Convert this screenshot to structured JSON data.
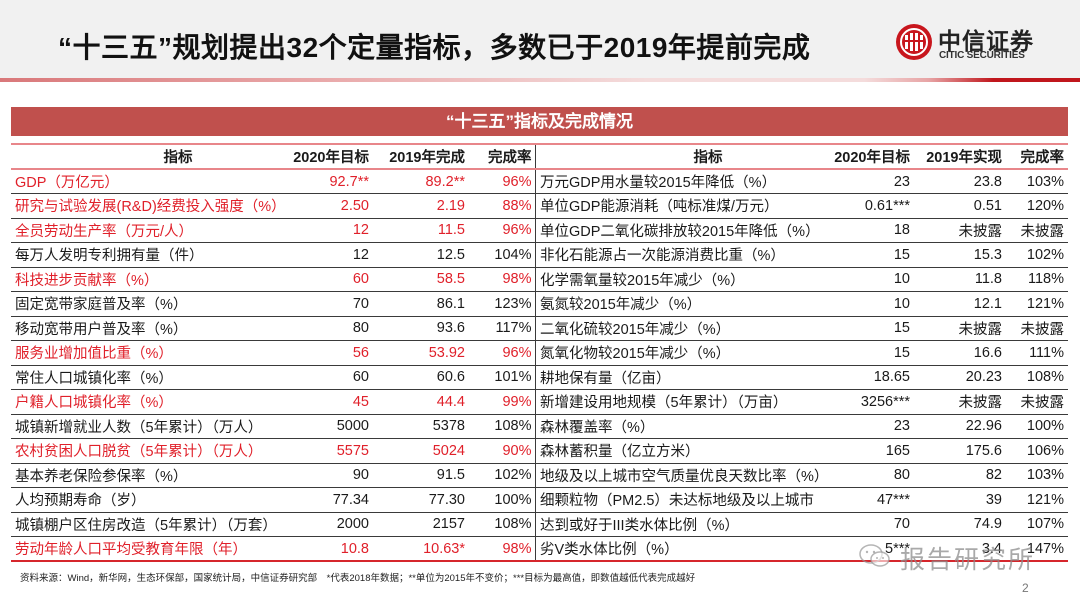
{
  "header": {
    "title": "“十三五”规划提出32个定量指标，多数已于2019年提前完成",
    "logo": {
      "cn": "中信证券",
      "en": "CITIC SECURITIES",
      "icon": "citic-logo-icon",
      "brand_color": "#c8161d"
    }
  },
  "banner": {
    "title": "“十三五”指标及完成情况",
    "color": "#c0504d"
  },
  "left_table": {
    "columns": [
      "指标",
      "2020年目标",
      "2019年完成",
      "完成率"
    ],
    "rows": [
      {
        "name": "GDP（万亿元）",
        "target": "92.7**",
        "actual": "89.2**",
        "rate": "96%",
        "highlight": true
      },
      {
        "name": "研究与试验发展(R&D)经费投入强度（%）",
        "target": "2.50",
        "actual": "2.19",
        "rate": "88%",
        "highlight": true
      },
      {
        "name": "全员劳动生产率（万元/人）",
        "target": "12",
        "actual": "11.5",
        "rate": "96%",
        "highlight": true
      },
      {
        "name": "每万人发明专利拥有量（件）",
        "target": "12",
        "actual": "12.5",
        "rate": "104%",
        "highlight": false
      },
      {
        "name": "科技进步贡献率（%）",
        "target": "60",
        "actual": "58.5",
        "rate": "98%",
        "highlight": true
      },
      {
        "name": "固定宽带家庭普及率（%）",
        "target": "70",
        "actual": "86.1",
        "rate": "123%",
        "highlight": false
      },
      {
        "name": "移动宽带用户普及率（%）",
        "target": "80",
        "actual": "93.6",
        "rate": "117%",
        "highlight": false
      },
      {
        "name": "服务业增加值比重（%）",
        "target": "56",
        "actual": "53.92",
        "rate": "96%",
        "highlight": true
      },
      {
        "name": "常住人口城镇化率（%）",
        "target": "60",
        "actual": "60.6",
        "rate": "101%",
        "highlight": false
      },
      {
        "name": "户籍人口城镇化率（%）",
        "target": "45",
        "actual": "44.4",
        "rate": "99%",
        "highlight": true
      },
      {
        "name": "城镇新增就业人数（5年累计）（万人）",
        "target": "5000",
        "actual": "5378",
        "rate": "108%",
        "highlight": false
      },
      {
        "name": "农村贫困人口脱贫（5年累计）（万人）",
        "target": "5575",
        "actual": "5024",
        "rate": "90%",
        "highlight": true
      },
      {
        "name": "基本养老保险参保率（%）",
        "target": "90",
        "actual": "91.5",
        "rate": "102%",
        "highlight": false
      },
      {
        "name": "人均预期寿命（岁）",
        "target": "77.34",
        "actual": "77.30",
        "rate": "100%",
        "highlight": false
      },
      {
        "name": "城镇棚户区住房改造（5年累计）（万套）",
        "target": "2000",
        "actual": "2157",
        "rate": "108%",
        "highlight": false
      },
      {
        "name": "劳动年龄人口平均受教育年限（年）",
        "target": "10.8",
        "actual": "10.63*",
        "rate": "98%",
        "highlight": true
      }
    ]
  },
  "right_table": {
    "columns": [
      "指标",
      "2020年目标",
      "2019年实现",
      "完成率"
    ],
    "rows": [
      {
        "name": "万元GDP用水量较2015年降低（%）",
        "target": "23",
        "actual": "23.8",
        "rate": "103%"
      },
      {
        "name": "单位GDP能源消耗（吨标准煤/万元）",
        "target": "0.61***",
        "actual": "0.51",
        "rate": "120%"
      },
      {
        "name": "单位GDP二氧化碳排放较2015年降低（%）",
        "target": "18",
        "actual": "未披露",
        "rate": "未披露"
      },
      {
        "name": "非化石能源占一次能源消费比重（%）",
        "target": "15",
        "actual": "15.3",
        "rate": "102%"
      },
      {
        "name": "化学需氧量较2015年减少（%）",
        "target": "10",
        "actual": "11.8",
        "rate": "118%"
      },
      {
        "name": "氨氮较2015年减少（%）",
        "target": "10",
        "actual": "12.1",
        "rate": "121%"
      },
      {
        "name": "二氧化硫较2015年减少（%）",
        "target": "15",
        "actual": "未披露",
        "rate": "未披露"
      },
      {
        "name": "氮氧化物较2015年减少（%）",
        "target": "15",
        "actual": "16.6",
        "rate": "111%"
      },
      {
        "name": "耕地保有量（亿亩）",
        "target": "18.65",
        "actual": "20.23",
        "rate": "108%"
      },
      {
        "name": "新增建设用地规模（5年累计）（万亩）",
        "target": "3256***",
        "actual": "未披露",
        "rate": "未披露"
      },
      {
        "name": "森林覆盖率（%）",
        "target": "23",
        "actual": "22.96",
        "rate": "100%"
      },
      {
        "name": "森林蓄积量（亿立方米）",
        "target": "165",
        "actual": "175.6",
        "rate": "106%"
      },
      {
        "name": "地级及以上城市空气质量优良天数比率（%）",
        "target": "80",
        "actual": "82",
        "rate": "103%"
      },
      {
        "name": "细颗粒物（PM2.5）未达标地级及以上城市",
        "target": "47***",
        "actual": "39",
        "rate": "121%"
      },
      {
        "name": "达到或好于III类水体比例（%）",
        "target": "70",
        "actual": "74.9",
        "rate": "107%"
      },
      {
        "name": "劣V类水体比例（%）",
        "target": "5***",
        "actual": "3.4",
        "rate": "147%"
      }
    ]
  },
  "footer": {
    "note": "资料来源：Wind，新华网，生态环保部，国家统计局，中信证券研究部　*代表2018年数据；**单位为2015年不变价；***目标为最高值，即数值越低代表完成越好",
    "page_number": "2"
  },
  "watermark": {
    "text": "报告研究所",
    "icon": "wechat-icon"
  },
  "colors": {
    "highlight_text": "#e0202a",
    "banner": "#c0504d",
    "header_bg": "#f1f1f1"
  }
}
